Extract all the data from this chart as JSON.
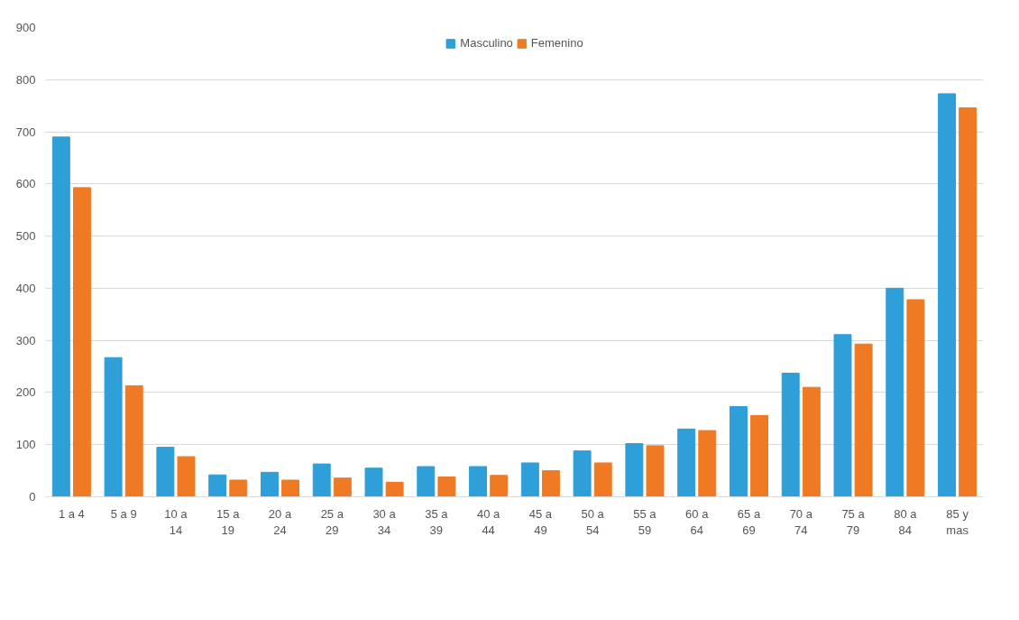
{
  "chart_data": {
    "type": "bar",
    "categories": [
      "1 a 4",
      "5 a 9",
      "10 a 14",
      "15 a 19",
      "20 a 24",
      "25 a 29",
      "30 a 34",
      "35 a 39",
      "40 a 44",
      "45 a 49",
      "50 a 54",
      "55 a 59",
      "60 a 64",
      "65 a 69",
      "70 a 74",
      "75 a 79",
      "80 a 84",
      "85 y mas"
    ],
    "series": [
      {
        "name": "Masculino",
        "color": "#2e9fd8",
        "values": [
          690,
          267,
          95,
          42,
          47,
          63,
          55,
          58,
          58,
          65,
          88,
          102,
          130,
          173,
          237,
          311,
          400,
          773
        ]
      },
      {
        "name": "Femenino",
        "color": "#f07a24",
        "values": [
          593,
          213,
          77,
          32,
          32,
          36,
          28,
          38,
          41,
          50,
          65,
          98,
          127,
          156,
          210,
          293,
          378,
          746
        ]
      }
    ],
    "ylim": [
      0,
      900
    ],
    "yticks": [
      0,
      100,
      200,
      300,
      400,
      500,
      600,
      700,
      800,
      900
    ],
    "grid": "y",
    "legend": "top"
  }
}
